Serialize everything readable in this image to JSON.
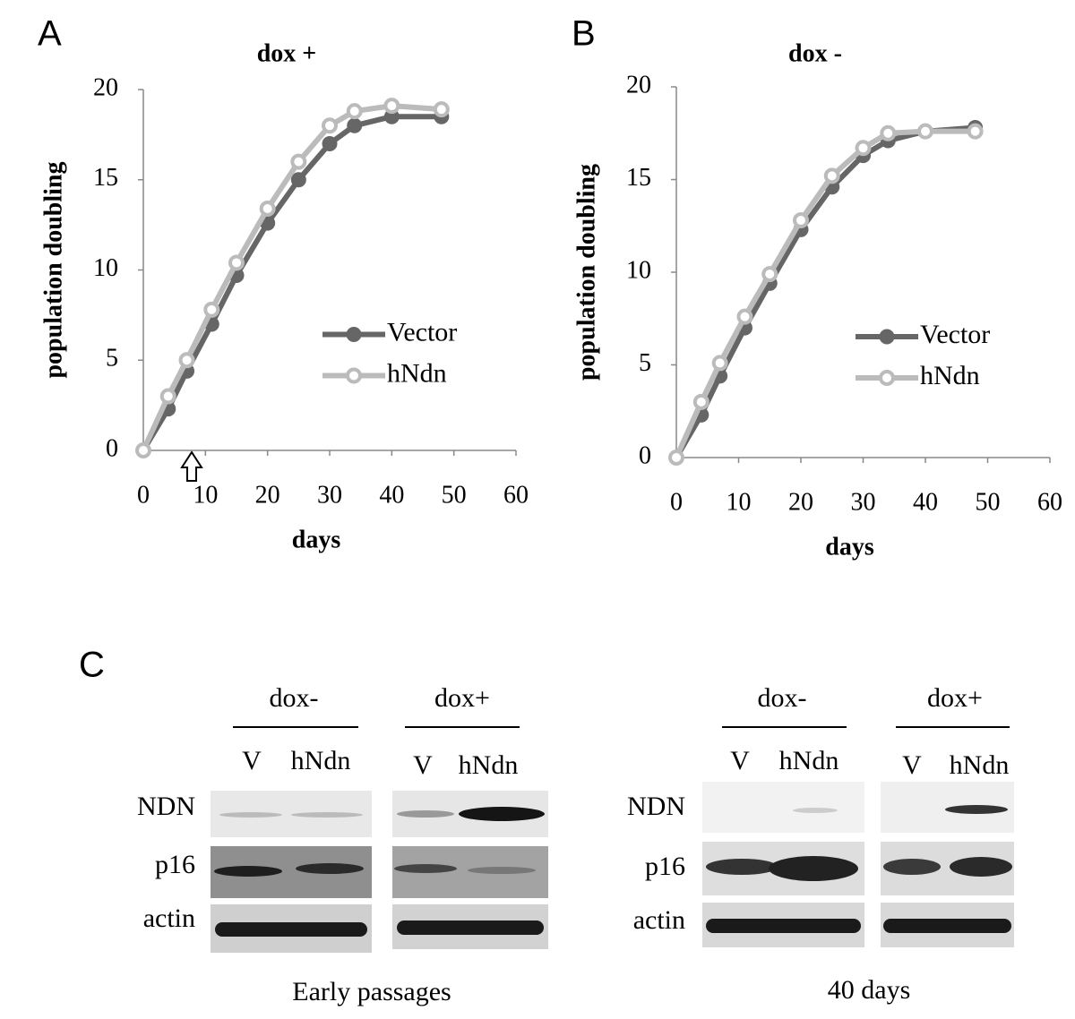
{
  "chart_data": [
    {
      "type": "line",
      "panel": "A",
      "title": "dox +",
      "x_label": "days",
      "y_label": "population doubling",
      "x": [
        0,
        4,
        7,
        11,
        15,
        20,
        25,
        30,
        34,
        40,
        48
      ],
      "series": [
        {
          "name": "Vector",
          "color": "#666666",
          "marker": "filled",
          "values": [
            0,
            2.3,
            4.4,
            7,
            9.7,
            12.6,
            15,
            17,
            18,
            18.5,
            18.5
          ]
        },
        {
          "name": "hNdn",
          "color": "#bbbbbb",
          "marker": "hollow",
          "values": [
            0,
            3,
            5,
            7.8,
            10.4,
            13.4,
            16,
            18,
            18.8,
            19.1,
            18.9
          ]
        }
      ],
      "xlim": [
        0,
        60
      ],
      "xticks": [
        0,
        10,
        20,
        30,
        40,
        50,
        60
      ],
      "ylim": [
        0,
        20
      ],
      "yticks": [
        0,
        5,
        10,
        15,
        20
      ],
      "grid": false,
      "legend": "center right"
    },
    {
      "type": "line",
      "panel": "B",
      "title": "dox -",
      "x_label": "days",
      "y_label": "population doubling",
      "x": [
        0,
        4,
        7,
        11,
        15,
        20,
        25,
        30,
        34,
        40,
        48
      ],
      "series": [
        {
          "name": "Vector",
          "color": "#666666",
          "marker": "filled",
          "values": [
            0,
            2.3,
            4.4,
            7,
            9.4,
            12.3,
            14.6,
            16.3,
            17.1,
            17.6,
            17.8
          ]
        },
        {
          "name": "hNdn",
          "color": "#bbbbbb",
          "marker": "hollow",
          "values": [
            0,
            3,
            5.1,
            7.6,
            9.9,
            12.8,
            15.2,
            16.7,
            17.5,
            17.6,
            17.6
          ]
        }
      ],
      "xlim": [
        0,
        60
      ],
      "xticks": [
        0,
        10,
        20,
        30,
        40,
        50,
        60
      ],
      "ylim": [
        0,
        20
      ],
      "yticks": [
        0,
        5,
        10,
        15,
        20
      ],
      "grid": false,
      "legend": "center right"
    }
  ],
  "blots": {
    "panel": "C",
    "groups": [
      {
        "caption": "Early passages",
        "conditions": [
          {
            "label": "dox-",
            "lanes": [
              "V",
              "hNdn"
            ]
          },
          {
            "label": "dox+",
            "lanes": [
              "V",
              "hNdn"
            ]
          }
        ],
        "rows": [
          "NDN",
          "p16",
          "actin"
        ]
      },
      {
        "caption": "40 days",
        "conditions": [
          {
            "label": "dox-",
            "lanes": [
              "V",
              "hNdn"
            ]
          },
          {
            "label": "dox+",
            "lanes": [
              "V",
              "hNdn"
            ]
          }
        ],
        "rows": [
          "NDN",
          "p16",
          "actin"
        ]
      }
    ]
  }
}
